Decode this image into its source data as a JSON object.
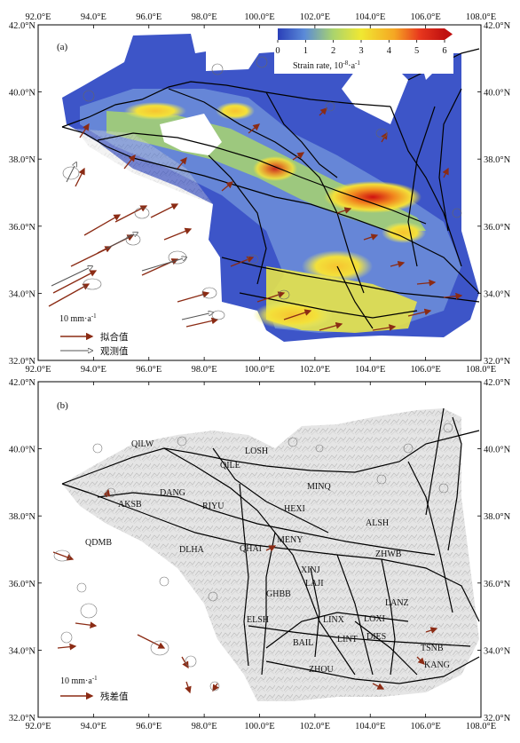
{
  "panel_a": {
    "label": "(a)",
    "colorbar": {
      "ticks": [
        "0",
        "1",
        "2",
        "3",
        "4",
        "5",
        "6"
      ],
      "title_prefix": "Strain rate, 10",
      "title_exp": "-8",
      "title_unit": "a",
      "title_unit_exp": "-1",
      "colors": [
        "#2a3fb8",
        "#5a8ad8",
        "#a9d36e",
        "#f0e832",
        "#f5a623",
        "#e8381e",
        "#c01010"
      ]
    },
    "legend": {
      "scale_prefix": "10 mm·a",
      "scale_exp": "-1",
      "fitted_label": "拟合值",
      "observed_label": "观测值"
    }
  },
  "panel_b": {
    "label": "(b)",
    "legend": {
      "scale_prefix": "10 mm·a",
      "scale_exp": "-1",
      "residual_label": "残差值"
    },
    "blocks": [
      "QILW",
      "LOSH",
      "QILE",
      "MINQ",
      "DANG",
      "HEXI",
      "AKSB",
      "RIYU",
      "ALSH",
      "QDMB",
      "MENY",
      "DLHA",
      "QHAI",
      "ZHWB",
      "XINJ",
      "LAJI",
      "GHBB",
      "LANZ",
      "ELSH",
      "LINX",
      "LOXI",
      "DIES",
      "BAIL",
      "LINT",
      "TSNB",
      "KANG",
      "ZHOU"
    ]
  },
  "axes": {
    "lon_ticks": [
      "92.0°E",
      "94.0°E",
      "96.0°E",
      "98.0°E",
      "100.0°E",
      "102.0°E",
      "104.0°E",
      "106.0°E",
      "108.0°E"
    ],
    "lat_ticks": [
      "42.0°N",
      "40.0°N",
      "38.0°N",
      "36.0°N",
      "34.0°N",
      "32.0°N"
    ]
  },
  "colors": {
    "fitted_arrow": "#8b2b14",
    "observed_arrow": "#555555",
    "fault_line": "#000000",
    "residual_arrow": "#8b2b14"
  }
}
